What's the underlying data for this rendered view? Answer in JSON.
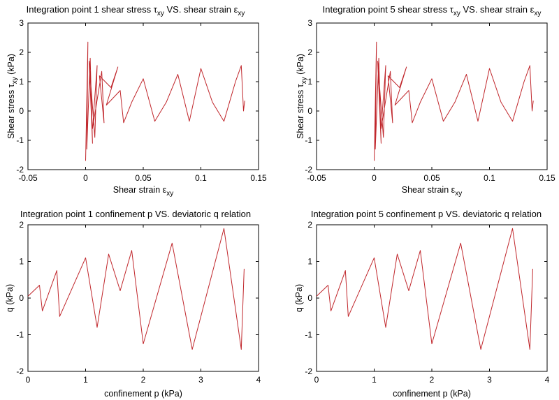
{
  "colors": {
    "series": "#c0262b",
    "axis": "#000000",
    "background": "#ffffff"
  },
  "chart_data": [
    {
      "type": "line",
      "title": {
        "prefix": "Integration point 1 shear stress ",
        "sym": "τ",
        "sub": "xy",
        "mid": " VS. shear strain ",
        "sym2": "ε",
        "sub2": "xy"
      },
      "xlabel": {
        "text": "Shear strain ",
        "sym": "ε",
        "sub": "xy"
      },
      "ylabel": {
        "text": "Shear stress ",
        "sym": "τ",
        "sub": "xy",
        "suffix": " (kPa)"
      },
      "xlim": [
        -0.05,
        0.15
      ],
      "ylim": [
        -2,
        3
      ],
      "xticks": [
        "-0.05",
        "0",
        "0.05",
        "0.1",
        "0.15"
      ],
      "yticks": [
        "-2",
        "-1",
        "0",
        "1",
        "2",
        "3"
      ],
      "series": [
        {
          "x": [
            0,
            0.002,
            0.001,
            0.004,
            0.006,
            0.003,
            0.008,
            0.01,
            0.006,
            0.014,
            0.016,
            0.012,
            0.022,
            0.028,
            0.018,
            0.03,
            0.033,
            0.04,
            0.05,
            0.06,
            0.07,
            0.08,
            0.09,
            0.1,
            0.11,
            0.12,
            0.13,
            0.135,
            0.137,
            0.138
          ],
          "y": [
            -1.7,
            2.35,
            -1.3,
            1.8,
            -1.1,
            1.7,
            -0.9,
            1.55,
            -0.6,
            1.35,
            -0.4,
            1.2,
            0.8,
            1.5,
            0.2,
            0.7,
            -0.4,
            0.3,
            1.1,
            -0.35,
            0.3,
            1.25,
            -0.35,
            1.45,
            0.3,
            -0.35,
            1.0,
            1.55,
            0.0,
            0.35
          ]
        }
      ]
    },
    {
      "type": "line",
      "title": {
        "prefix": "Integration point 5 shear stress ",
        "sym": "τ",
        "sub": "xy",
        "mid": " VS. shear strain ",
        "sym2": "ε",
        "sub2": "xy"
      },
      "xlabel": {
        "text": "Shear strain ",
        "sym": "ε",
        "sub": "xy"
      },
      "ylabel": {
        "text": "Shear stress ",
        "sym": "τ",
        "sub": "xy",
        "suffix": " (kPa)"
      },
      "xlim": [
        -0.05,
        0.15
      ],
      "ylim": [
        -2,
        3
      ],
      "xticks": [
        "-0.05",
        "0",
        "0.05",
        "0.1",
        "0.15"
      ],
      "yticks": [
        "-2",
        "-1",
        "0",
        "1",
        "2",
        "3"
      ],
      "series": [
        {
          "x": [
            0,
            0.002,
            0.001,
            0.004,
            0.006,
            0.003,
            0.008,
            0.01,
            0.006,
            0.014,
            0.016,
            0.012,
            0.022,
            0.028,
            0.018,
            0.03,
            0.033,
            0.04,
            0.05,
            0.06,
            0.07,
            0.08,
            0.09,
            0.1,
            0.11,
            0.12,
            0.13,
            0.135,
            0.137,
            0.138
          ],
          "y": [
            -1.7,
            2.35,
            -1.3,
            1.8,
            -1.1,
            1.7,
            -0.9,
            1.55,
            -0.6,
            1.35,
            -0.4,
            1.2,
            0.8,
            1.5,
            0.2,
            0.7,
            -0.4,
            0.3,
            1.1,
            -0.35,
            0.3,
            1.25,
            -0.35,
            1.45,
            0.3,
            -0.35,
            1.0,
            1.55,
            0.0,
            0.35
          ]
        }
      ]
    },
    {
      "type": "line",
      "title": {
        "prefix": "Integration point 1 confinement p VS. deviatoric q relation"
      },
      "xlabel": {
        "text": "confinement p (kPa)"
      },
      "ylabel": {
        "text": "q (kPa)"
      },
      "xlim": [
        0,
        4
      ],
      "ylim": [
        -2,
        2
      ],
      "xticks": [
        "0",
        "1",
        "2",
        "3",
        "4"
      ],
      "yticks": [
        "-2",
        "-1",
        "0",
        "1",
        "2"
      ],
      "series": [
        {
          "x": [
            0.0,
            0.2,
            0.25,
            0.5,
            0.55,
            1.0,
            1.2,
            1.4,
            1.6,
            1.8,
            2.0,
            2.5,
            2.85,
            3.4,
            3.7,
            3.75
          ],
          "y": [
            0.05,
            0.35,
            -0.35,
            0.75,
            -0.5,
            1.1,
            -0.8,
            1.2,
            0.2,
            1.3,
            -1.25,
            1.5,
            -1.4,
            1.9,
            -1.4,
            0.8
          ]
        }
      ]
    },
    {
      "type": "line",
      "title": {
        "prefix": "Integration point 5 confinement p VS. deviatoric q relation"
      },
      "xlabel": {
        "text": "confinement p (kPa)"
      },
      "ylabel": {
        "text": "q (kPa)"
      },
      "xlim": [
        0,
        4
      ],
      "ylim": [
        -2,
        2
      ],
      "xticks": [
        "0",
        "1",
        "2",
        "3",
        "4"
      ],
      "yticks": [
        "-2",
        "-1",
        "0",
        "1",
        "2"
      ],
      "series": [
        {
          "x": [
            0.0,
            0.2,
            0.25,
            0.5,
            0.55,
            1.0,
            1.2,
            1.4,
            1.6,
            1.8,
            2.0,
            2.5,
            2.85,
            3.4,
            3.7,
            3.75
          ],
          "y": [
            0.05,
            0.35,
            -0.35,
            0.75,
            -0.5,
            1.1,
            -0.8,
            1.2,
            0.2,
            1.3,
            -1.25,
            1.5,
            -1.4,
            1.9,
            -1.4,
            0.8
          ]
        }
      ]
    }
  ]
}
